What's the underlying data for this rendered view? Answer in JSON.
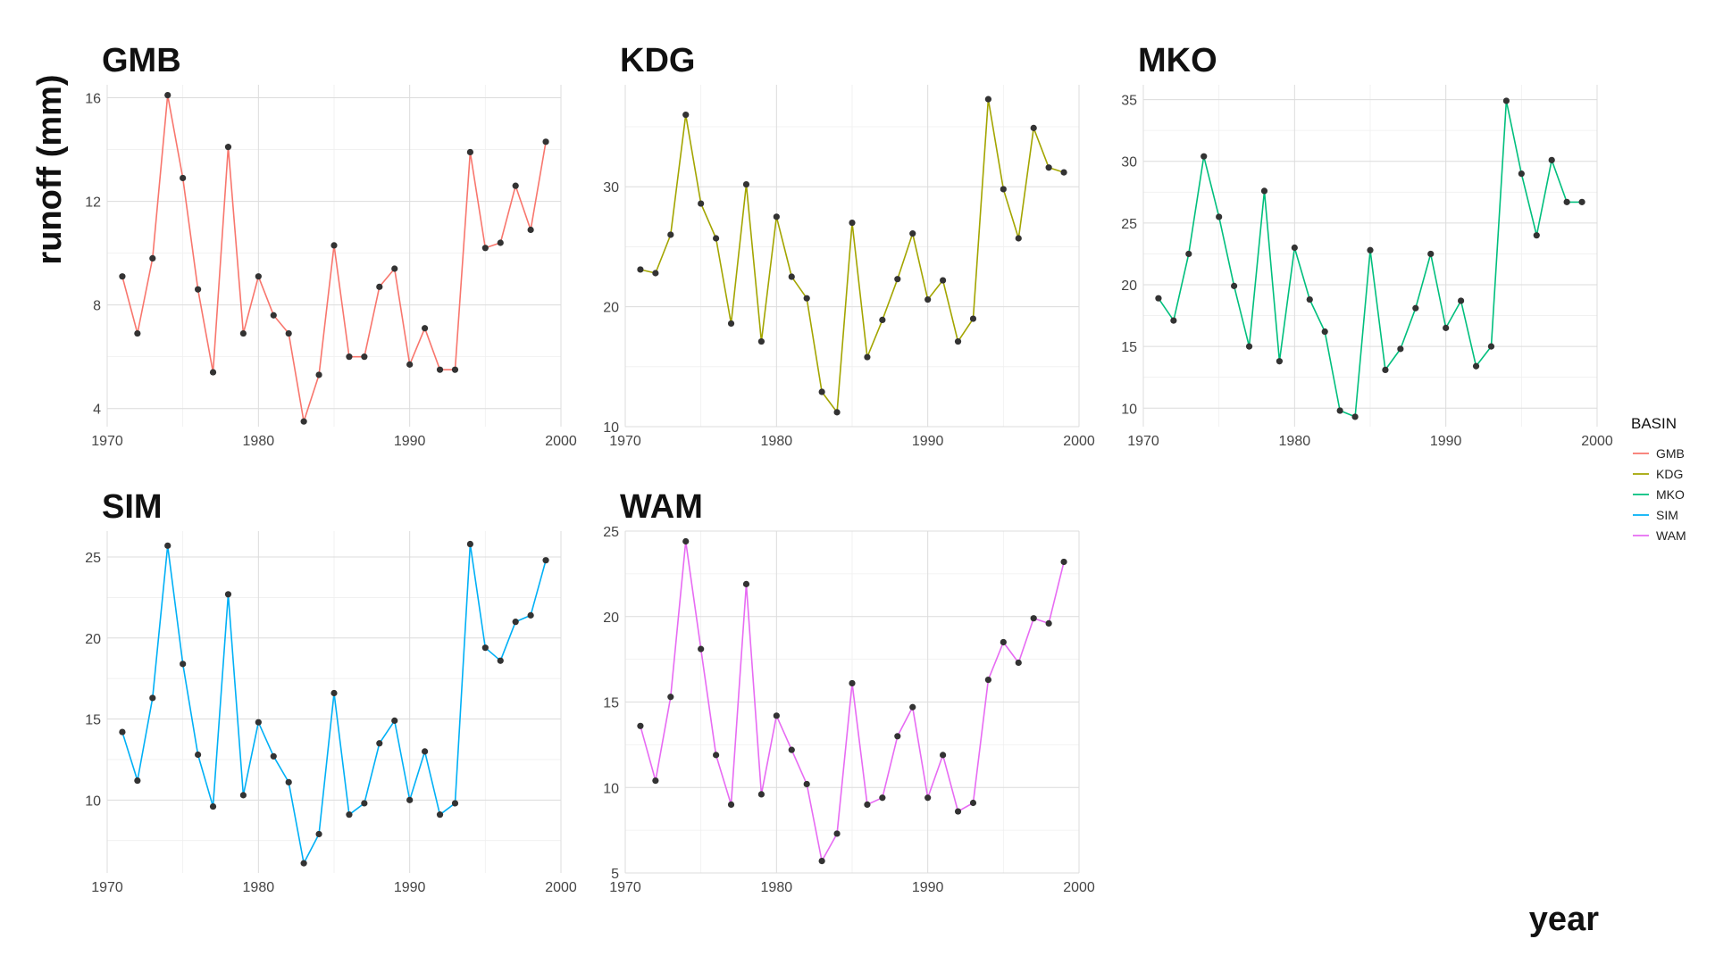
{
  "chart_data": {
    "type": "line",
    "ylabel": "runoff (mm)",
    "xlabel": "year",
    "legend": {
      "title": "BASIN",
      "position": "right",
      "entries": [
        {
          "name": "GMB",
          "color": "#F8766D"
        },
        {
          "name": "KDG",
          "color": "#A3A500"
        },
        {
          "name": "MKO",
          "color": "#00BF7D"
        },
        {
          "name": "SIM",
          "color": "#00B0F6"
        },
        {
          "name": "WAM",
          "color": "#E76BF3"
        }
      ]
    },
    "point_color": "#333333",
    "grid": true,
    "xlim": [
      1970,
      2000
    ],
    "xticks": [
      1970,
      1980,
      1990,
      2000
    ],
    "panels": [
      {
        "name": "GMB",
        "color": "#F8766D",
        "ylim": [
          3.3,
          16.5
        ],
        "yticks": [
          4,
          8,
          12,
          16
        ],
        "x": [
          1971,
          1972,
          1973,
          1974,
          1975,
          1976,
          1977,
          1978,
          1979,
          1980,
          1981,
          1982,
          1983,
          1984,
          1985,
          1986,
          1987,
          1988,
          1989,
          1990,
          1991,
          1992,
          1993,
          1994,
          1995,
          1996,
          1997,
          1998,
          1999
        ],
        "y": [
          9.1,
          6.9,
          9.8,
          16.1,
          12.9,
          8.6,
          5.4,
          14.1,
          6.9,
          9.1,
          7.6,
          6.9,
          3.5,
          5.3,
          10.3,
          6.0,
          6.0,
          8.7,
          9.4,
          5.7,
          7.1,
          5.5,
          5.5,
          13.9,
          10.2,
          10.4,
          12.6,
          10.9,
          14.3
        ]
      },
      {
        "name": "KDG",
        "color": "#A3A500",
        "ylim": [
          10,
          38.5
        ],
        "yticks": [
          10,
          20,
          30
        ],
        "x": [
          1971,
          1972,
          1973,
          1974,
          1975,
          1976,
          1977,
          1978,
          1979,
          1980,
          1981,
          1982,
          1983,
          1984,
          1985,
          1986,
          1987,
          1988,
          1989,
          1990,
          1991,
          1992,
          1993,
          1994,
          1995,
          1996,
          1997,
          1998,
          1999
        ],
        "y": [
          23.1,
          22.8,
          26.0,
          36.0,
          28.6,
          25.7,
          18.6,
          30.2,
          17.1,
          27.5,
          22.5,
          20.7,
          12.9,
          11.2,
          27.0,
          15.8,
          18.9,
          22.3,
          26.1,
          20.6,
          22.2,
          17.1,
          19.0,
          37.3,
          29.8,
          25.7,
          34.9,
          31.6,
          31.2
        ]
      },
      {
        "name": "MKO",
        "color": "#00BF7D",
        "ylim": [
          8.5,
          36.2
        ],
        "yticks": [
          10,
          15,
          20,
          25,
          30,
          35
        ],
        "x": [
          1971,
          1972,
          1973,
          1974,
          1975,
          1976,
          1977,
          1978,
          1979,
          1980,
          1981,
          1982,
          1983,
          1984,
          1985,
          1986,
          1987,
          1988,
          1989,
          1990,
          1991,
          1992,
          1993,
          1994,
          1995,
          1996,
          1997,
          1998,
          1999
        ],
        "y": [
          18.9,
          17.1,
          22.5,
          30.4,
          25.5,
          19.9,
          15.0,
          27.6,
          13.8,
          23.0,
          18.8,
          16.2,
          9.8,
          9.3,
          22.8,
          13.1,
          14.8,
          18.1,
          22.5,
          16.5,
          18.7,
          13.4,
          15.0,
          34.9,
          29.0,
          24.0,
          30.1,
          26.7,
          26.7
        ]
      },
      {
        "name": "SIM",
        "color": "#00B0F6",
        "ylim": [
          5.5,
          26.6
        ],
        "yticks": [
          10,
          15,
          20,
          25
        ],
        "x": [
          1971,
          1972,
          1973,
          1974,
          1975,
          1976,
          1977,
          1978,
          1979,
          1980,
          1981,
          1982,
          1983,
          1984,
          1985,
          1986,
          1987,
          1988,
          1989,
          1990,
          1991,
          1992,
          1993,
          1994,
          1995,
          1996,
          1997,
          1998,
          1999
        ],
        "y": [
          14.2,
          11.2,
          16.3,
          25.7,
          18.4,
          12.8,
          9.6,
          22.7,
          10.3,
          14.8,
          12.7,
          11.1,
          6.1,
          7.9,
          16.6,
          9.1,
          9.8,
          13.5,
          14.9,
          10.0,
          13.0,
          9.1,
          9.8,
          25.8,
          19.4,
          18.6,
          21.0,
          21.4,
          24.8
        ]
      },
      {
        "name": "WAM",
        "color": "#E76BF3",
        "ylim": [
          5,
          25
        ],
        "yticks": [
          5,
          10,
          15,
          20,
          25
        ],
        "x": [
          1971,
          1972,
          1973,
          1974,
          1975,
          1976,
          1977,
          1978,
          1979,
          1980,
          1981,
          1982,
          1983,
          1984,
          1985,
          1986,
          1987,
          1988,
          1989,
          1990,
          1991,
          1992,
          1993,
          1994,
          1995,
          1996,
          1997,
          1998,
          1999
        ],
        "y": [
          13.6,
          10.4,
          15.3,
          24.4,
          18.1,
          11.9,
          9.0,
          21.9,
          9.6,
          14.2,
          12.2,
          10.2,
          5.7,
          7.3,
          16.1,
          9.0,
          9.4,
          13.0,
          14.7,
          9.4,
          11.9,
          8.6,
          9.1,
          16.3,
          18.5,
          17.3,
          19.9,
          19.6,
          23.2
        ]
      }
    ]
  }
}
